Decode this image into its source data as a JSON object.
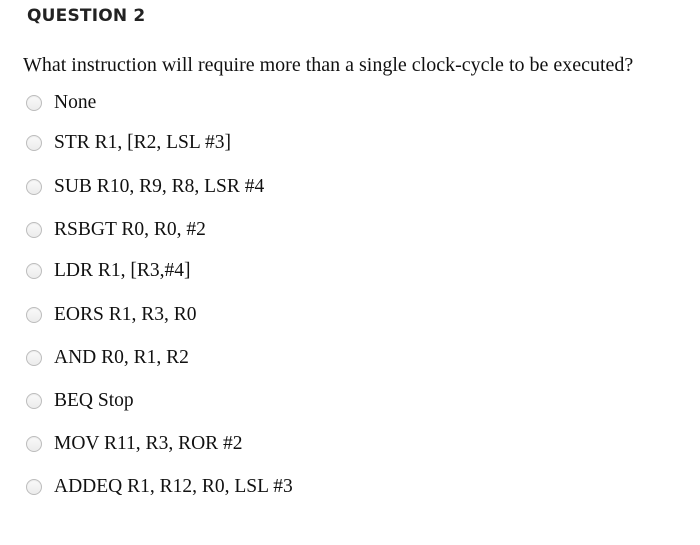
{
  "header": {
    "title": "QUESTION 2"
  },
  "question": {
    "text": "What instruction will require more than a single clock-cycle to be executed?"
  },
  "options": [
    {
      "label": "None",
      "selected": false
    },
    {
      "label": "STR R1, [R2, LSL #3]",
      "selected": false
    },
    {
      "label": "SUB R10, R9, R8, LSR #4",
      "selected": false
    },
    {
      "label": "RSBGT R0, R0, #2",
      "selected": false
    },
    {
      "label": "LDR R1, [R3,#4]",
      "selected": false
    },
    {
      "label": "EORS R1, R3, R0",
      "selected": false
    },
    {
      "label": "AND R0, R1, R2",
      "selected": false
    },
    {
      "label": "BEQ Stop",
      "selected": false
    },
    {
      "label": "MOV R11, R3, ROR #2",
      "selected": false
    },
    {
      "label": "ADDEQ R1, R12, R0, LSL #3",
      "selected": false
    }
  ]
}
